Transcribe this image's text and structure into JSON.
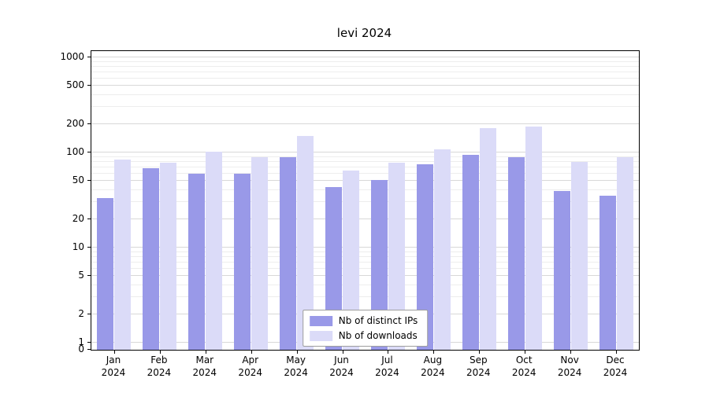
{
  "chart_data": {
    "type": "bar",
    "title": "levi 2024",
    "categories": [
      "Jan",
      "Feb",
      "Mar",
      "Apr",
      "May",
      "Jun",
      "Jul",
      "Aug",
      "Sep",
      "Oct",
      "Nov",
      "Dec"
    ],
    "year": "2024",
    "series": [
      {
        "name": "Nb of distinct IPs",
        "color": "#9999e8",
        "values": [
          33,
          68,
          60,
          60,
          90,
          43,
          51,
          75,
          95,
          90,
          39,
          35
        ]
      },
      {
        "name": "Nb of downloads",
        "color": "#dbdbf8",
        "values": [
          85,
          78,
          102,
          90,
          150,
          65,
          78,
          108,
          180,
          188,
          80,
          90
        ]
      }
    ],
    "yscale": "symlog",
    "yticks": [
      0,
      1,
      2,
      5,
      10,
      20,
      50,
      100,
      200,
      500,
      1000
    ],
    "ylim": [
      0,
      1150
    ],
    "grid": true,
    "legend_position": "lower center",
    "xlabel": "",
    "ylabel": ""
  }
}
